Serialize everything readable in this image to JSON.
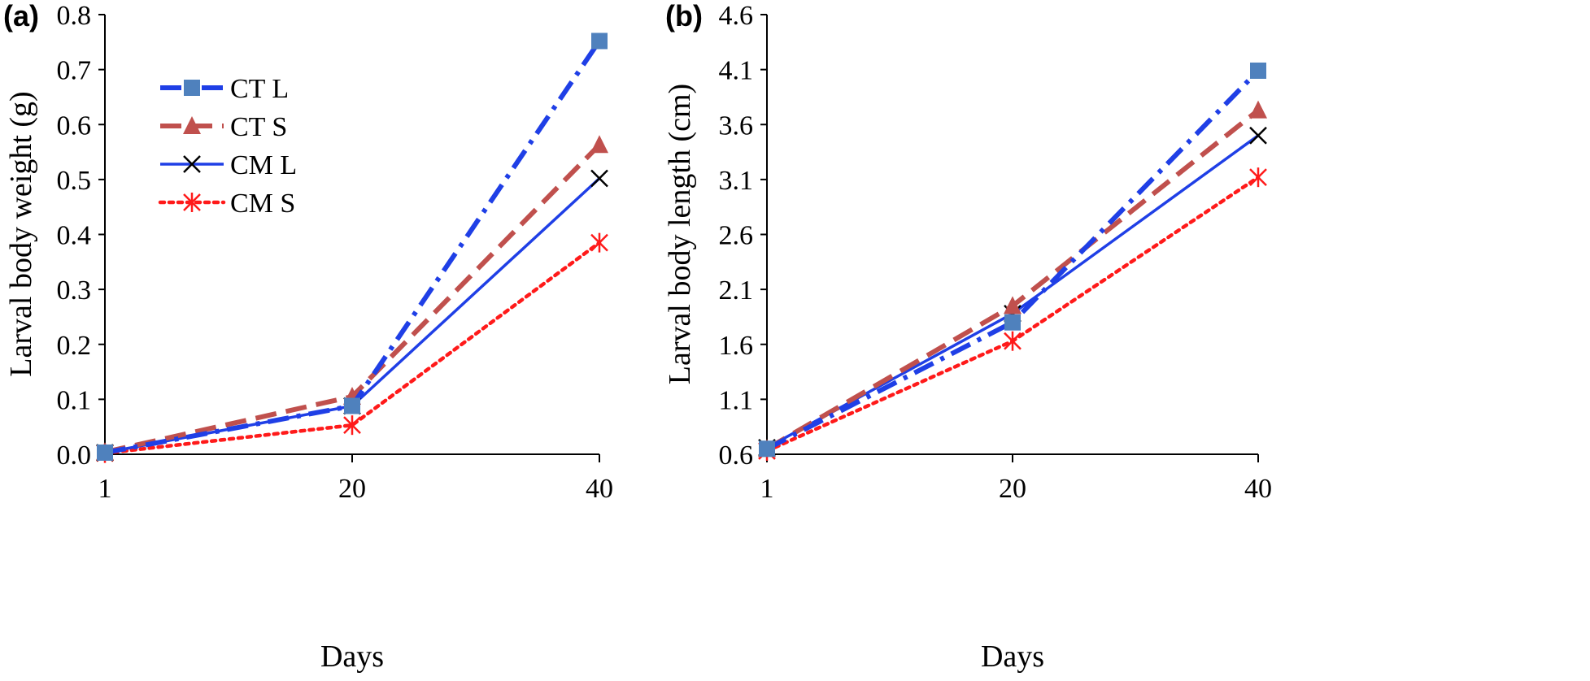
{
  "colors": {
    "CT L": "#1f3fe6",
    "CT S": "#c0504d",
    "CM L": "#1f3fe6",
    "CM S": "#ff1a1a"
  },
  "chart_data": [
    {
      "panel_label": "(a)",
      "type": "line",
      "xlabel": "Days",
      "ylabel": "Larval body weight (g)",
      "x": [
        1,
        20,
        40
      ],
      "x_ticks": [
        "1",
        "20",
        "40"
      ],
      "ylim": [
        0.0,
        0.8
      ],
      "y_ticks": [
        "0.0",
        "0.1",
        "0.2",
        "0.3",
        "0.4",
        "0.5",
        "0.6",
        "0.7",
        "0.8"
      ],
      "legend": {
        "position": "top-left",
        "entries": [
          "CT L",
          "CT S",
          "CM L",
          "CM S"
        ]
      },
      "series": [
        {
          "name": "CT L",
          "values": [
            0.003,
            0.088,
            0.752
          ],
          "line_style": "dash-dot",
          "marker": "square"
        },
        {
          "name": "CT S",
          "values": [
            0.004,
            0.105,
            0.563
          ],
          "line_style": "dashed",
          "marker": "triangle"
        },
        {
          "name": "CM L",
          "values": [
            0.003,
            0.088,
            0.502
          ],
          "line_style": "solid",
          "marker": "x"
        },
        {
          "name": "CM S",
          "values": [
            0.002,
            0.053,
            0.385
          ],
          "line_style": "dotted",
          "marker": "asterisk"
        }
      ]
    },
    {
      "panel_label": "(b)",
      "type": "line",
      "xlabel": "Days",
      "ylabel": "Larval body length (cm)",
      "x": [
        1,
        20,
        40
      ],
      "x_ticks": [
        "1",
        "20",
        "40"
      ],
      "ylim": [
        0.6,
        4.6
      ],
      "y_ticks": [
        "0.6",
        "1.1",
        "1.6",
        "2.1",
        "2.6",
        "3.1",
        "3.6",
        "4.1",
        "4.6"
      ],
      "series": [
        {
          "name": "CT L",
          "values": [
            0.65,
            1.8,
            4.09
          ],
          "line_style": "dash-dot",
          "marker": "square"
        },
        {
          "name": "CT S",
          "values": [
            0.65,
            1.95,
            3.73
          ],
          "line_style": "dashed",
          "marker": "triangle"
        },
        {
          "name": "CM L",
          "values": [
            0.66,
            1.88,
            3.5
          ],
          "line_style": "solid",
          "marker": "x"
        },
        {
          "name": "CM S",
          "values": [
            0.63,
            1.63,
            3.12
          ],
          "line_style": "dotted",
          "marker": "asterisk"
        }
      ]
    }
  ]
}
